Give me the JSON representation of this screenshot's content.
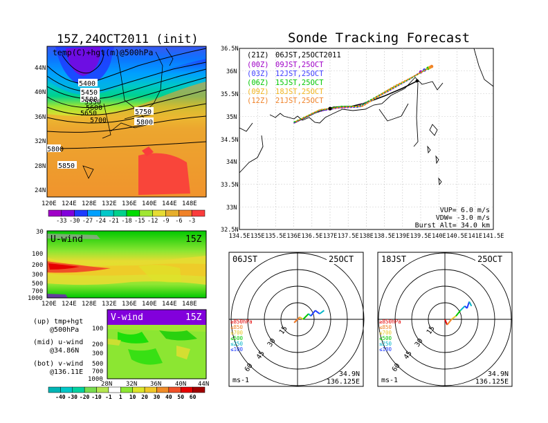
{
  "left_panel": {
    "title": "15Z,24OCT2011 (init)",
    "map_label": "temp(C)+hgt(m)@500hPa",
    "lat_ticks": [
      "44N",
      "40N",
      "36N",
      "32N",
      "28N",
      "24N"
    ],
    "lon_ticks": [
      "120E",
      "124E",
      "128E",
      "132E",
      "136E",
      "140E",
      "144E",
      "148E"
    ],
    "contour_labels": [
      "5400",
      "5450",
      "5500",
      "5550",
      "5600",
      "5650",
      "5700",
      "5750",
      "5800",
      "5850",
      "5800"
    ],
    "temp_colorbar": {
      "labels": [
        "-33",
        "-30",
        "-27",
        "-24",
        "-21",
        "-18",
        "-15",
        "-12",
        "-9",
        "-6",
        "-3"
      ],
      "colors": [
        "#a000c8",
        "#8200dc",
        "#1e3cff",
        "#00a0ff",
        "#00c8c8",
        "#00d28c",
        "#00dc00",
        "#a0e632",
        "#e6dc32",
        "#e6af2d",
        "#f08228",
        "#fa3c3c"
      ]
    }
  },
  "uwind_panel": {
    "title": "U-wind",
    "time": "15Z",
    "y_ticks": [
      "30",
      "100",
      "200",
      "300",
      "500",
      "700",
      "1000"
    ],
    "x_ticks": [
      "120E",
      "124E",
      "128E",
      "132E",
      "136E",
      "140E",
      "144E",
      "148E"
    ]
  },
  "vwind_panel": {
    "title": "V-wind",
    "time": "15Z",
    "y_ticks": [
      "100",
      "200",
      "300",
      "500",
      "700",
      "1000"
    ],
    "x_ticks": [
      "28N",
      "32N",
      "36N",
      "40N",
      "44N"
    ],
    "colorbar": {
      "labels": [
        "-40",
        "-30",
        "-20",
        "-10",
        "-1",
        "1",
        "10",
        "20",
        "30",
        "40",
        "50",
        "60"
      ],
      "colors": [
        "#00b4b4",
        "#00c8c8",
        "#00d2a0",
        "#78dc50",
        "#b4e650",
        "#ffffff",
        "#8ce632",
        "#dce628",
        "#f0c828",
        "#f08c28",
        "#f05028",
        "#e60000",
        "#a00000"
      ]
    }
  },
  "legend_notes": {
    "line1": "(up) tmp+hgt",
    "line2": "@500hPa",
    "line3": "(mid) u-wind",
    "line4": "@34.86N",
    "line5": "(bot) v-wind",
    "line6": "@136.11E"
  },
  "track_map": {
    "title": "Sonde Tracking Forecast",
    "lat_ticks": [
      "36.5N",
      "36N",
      "35.5N",
      "35N",
      "34.5N",
      "34N",
      "33.5N",
      "33N",
      "32.5N"
    ],
    "lon_ticks": [
      "134.5E",
      "135E",
      "135.5E",
      "136E",
      "136.5E",
      "137E",
      "137.5E",
      "138E",
      "138.5E",
      "139E",
      "139.5E",
      "140E",
      "140.5E",
      "141E",
      "141.5E"
    ],
    "legend": [
      {
        "code": "(21Z)",
        "label": "06JST,25OCT2011",
        "color": "#000000"
      },
      {
        "code": "(00Z)",
        "label": "09JST,25OCT",
        "color": "#a000c8"
      },
      {
        "code": "(03Z)",
        "label": "12JST,25OCT",
        "color": "#3c3cff"
      },
      {
        "code": "(06Z)",
        "label": "15JST,25OCT",
        "color": "#00c800"
      },
      {
        "code": "(09Z)",
        "label": "18JST,25OCT",
        "color": "#f0b41e"
      },
      {
        "code": "(12Z)",
        "label": "21JST,25OCT",
        "color": "#f08228"
      }
    ],
    "params": {
      "vup": "VUP= 6.0 m/s",
      "vdw": "VDW= -3.0 m/s",
      "burst": "Burst Alt= 34.0 km"
    }
  },
  "hodo_left": {
    "time": "06JST",
    "date": "25OCT",
    "ring_labels": [
      "15",
      "30",
      "45",
      "60"
    ],
    "pressure_legend": [
      "≥850hPa",
      "≤850",
      "≤700",
      "≤500",
      "≤250",
      "≤100"
    ],
    "unit": "ms-1",
    "lat": "34.9N",
    "lon": "136.125E"
  },
  "hodo_right": {
    "time": "18JST",
    "date": "25OCT",
    "ring_labels": [
      "15",
      "30",
      "45",
      "60"
    ],
    "pressure_legend": [
      "≥850hPa",
      "≤850",
      "≤700",
      "≤500",
      "≤250",
      "≤100"
    ],
    "unit": "ms-1",
    "lat": "34.9N",
    "lon": "136.125E"
  },
  "chart_data": [
    {
      "type": "heatmap",
      "title": "15Z,24OCT2011 (init)",
      "subtitle": "temp(C)+hgt(m)@500hPa",
      "xlabel": "",
      "ylabel": "",
      "x": [
        "120E",
        "124E",
        "128E",
        "132E",
        "136E",
        "140E",
        "144E",
        "148E"
      ],
      "y": [
        "44N",
        "40N",
        "36N",
        "32N",
        "28N",
        "24N"
      ],
      "values": [
        [
          -30,
          -27,
          -24,
          -21,
          -18,
          -15,
          -15,
          -12
        ],
        [
          -27,
          -24,
          -21,
          -18,
          -15,
          -15,
          -12,
          -9
        ],
        [
          -18,
          -15,
          -15,
          -12,
          -12,
          -9,
          -9,
          -9
        ],
        [
          -9,
          -9,
          -9,
          -6,
          -6,
          -6,
          -6,
          -6
        ],
        [
          -6,
          -6,
          -6,
          -6,
          -6,
          -6,
          -6,
          -6
        ],
        [
          -6,
          -6,
          -6,
          -6,
          -6,
          -6,
          -6,
          -6
        ]
      ],
      "contours": [
        5400,
        5450,
        5500,
        5550,
        5600,
        5650,
        5700,
        5750,
        5800,
        5850
      ]
    },
    {
      "type": "heatmap",
      "title": "U-wind",
      "subtitle": "15Z",
      "x": [
        "120E",
        "124E",
        "128E",
        "132E",
        "136E",
        "140E",
        "144E",
        "148E"
      ],
      "y": [
        "30",
        "100",
        "200",
        "300",
        "500",
        "700",
        "1000"
      ],
      "values": [
        [
          10,
          10,
          10,
          10,
          10,
          10,
          10,
          10
        ],
        [
          20,
          20,
          20,
          20,
          20,
          20,
          20,
          20
        ],
        [
          50,
          40,
          30,
          30,
          30,
          30,
          20,
          30
        ],
        [
          40,
          30,
          30,
          30,
          30,
          20,
          20,
          20
        ],
        [
          20,
          20,
          20,
          20,
          20,
          10,
          10,
          10
        ],
        [
          10,
          10,
          10,
          10,
          10,
          10,
          10,
          10
        ],
        [
          1,
          1,
          10,
          10,
          10,
          10,
          10,
          10
        ]
      ]
    },
    {
      "type": "heatmap",
      "title": "V-wind",
      "subtitle": "15Z",
      "x": [
        "28N",
        "32N",
        "36N",
        "40N",
        "44N"
      ],
      "y": [
        "100",
        "200",
        "300",
        "500",
        "700",
        "1000"
      ],
      "values": [
        [
          -10,
          -1,
          1,
          1,
          1
        ],
        [
          10,
          10,
          10,
          20,
          20
        ],
        [
          1,
          1,
          10,
          10,
          10
        ],
        [
          1,
          10,
          10,
          10,
          10
        ],
        [
          1,
          1,
          10,
          10,
          10
        ],
        [
          1,
          1,
          1,
          10,
          10
        ]
      ]
    },
    {
      "type": "line",
      "title": "Sonde Tracking Forecast",
      "xlabel": "",
      "ylabel": "",
      "xlim": [
        134.5,
        141.5
      ],
      "ylim": [
        32.5,
        36.5
      ],
      "series": [
        {
          "name": "(21Z) 06JST,25OCT2011",
          "x": [
            136.0,
            136.6,
            137.1,
            137.6,
            138.0,
            138.5,
            139.0,
            139.4
          ],
          "y": [
            34.85,
            35.08,
            35.2,
            35.22,
            35.3,
            35.45,
            35.62,
            35.78
          ]
        },
        {
          "name": "(00Z) 09JST,25OCT",
          "x": [
            136.0,
            136.6,
            137.2,
            137.7,
            138.1,
            138.6,
            139.1,
            139.5
          ],
          "y": [
            34.85,
            35.1,
            35.18,
            35.2,
            35.35,
            35.55,
            35.78,
            35.98
          ]
        },
        {
          "name": "(03Z) 12JST,25OCT",
          "x": [
            136.0,
            136.7,
            137.3,
            137.8,
            138.2,
            138.7,
            139.2,
            139.6
          ],
          "y": [
            34.86,
            35.12,
            35.2,
            35.2,
            35.38,
            35.6,
            35.82,
            36.02
          ]
        },
        {
          "name": "(06Z) 15JST,25OCT",
          "x": [
            136.0,
            136.7,
            137.3,
            137.8,
            138.2,
            138.7,
            139.25,
            139.7
          ],
          "y": [
            34.87,
            35.13,
            35.22,
            35.22,
            35.4,
            35.62,
            35.85,
            36.06
          ]
        },
        {
          "name": "(09Z) 18JST,25OCT",
          "x": [
            136.05,
            136.7,
            137.3,
            137.9,
            138.3,
            138.8,
            139.3,
            139.75
          ],
          "y": [
            34.88,
            35.14,
            35.2,
            35.22,
            35.42,
            35.65,
            35.88,
            36.08
          ]
        },
        {
          "name": "(12Z) 21JST,25OCT",
          "x": [
            136.05,
            136.75,
            137.4,
            137.9,
            138.3,
            138.8,
            139.4,
            139.8
          ],
          "y": [
            34.88,
            35.15,
            35.2,
            35.23,
            35.44,
            35.68,
            35.92,
            36.1
          ]
        }
      ]
    },
    {
      "type": "line",
      "title": "06JST 25OCT",
      "series": [
        {
          "name": "",
          "u": [
            0,
            -3,
            2,
            5,
            10,
            12,
            16,
            20,
            24
          ],
          "v": [
            0,
            -3,
            2,
            0,
            5,
            3,
            8,
            5,
            8
          ]
        }
      ],
      "ring_labels": [
        15,
        30,
        45,
        60
      ]
    },
    {
      "type": "line",
      "title": "18JST 25OCT",
      "series": [
        {
          "name": "",
          "u": [
            0,
            2,
            6,
            10,
            14,
            18,
            20,
            22,
            24
          ],
          "v": [
            0,
            -5,
            0,
            3,
            8,
            12,
            10,
            16,
            12
          ]
        }
      ],
      "ring_labels": [
        15,
        30,
        45,
        60
      ]
    }
  ]
}
